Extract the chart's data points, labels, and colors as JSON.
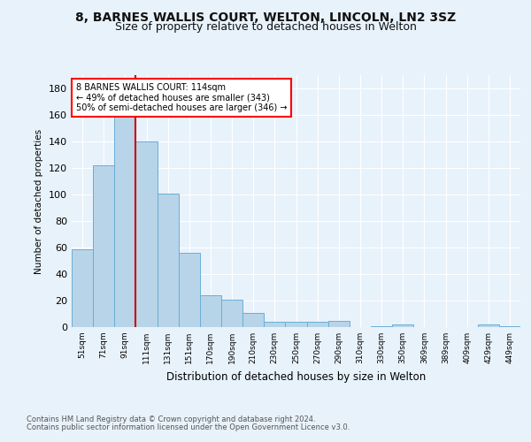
{
  "title1": "8, BARNES WALLIS COURT, WELTON, LINCOLN, LN2 3SZ",
  "title2": "Size of property relative to detached houses in Welton",
  "xlabel": "Distribution of detached houses by size in Welton",
  "ylabel": "Number of detached properties",
  "bar_labels": [
    "51sqm",
    "71sqm",
    "91sqm",
    "111sqm",
    "131sqm",
    "151sqm",
    "170sqm",
    "190sqm",
    "210sqm",
    "230sqm",
    "250sqm",
    "270sqm",
    "290sqm",
    "310sqm",
    "330sqm",
    "350sqm",
    "369sqm",
    "389sqm",
    "409sqm",
    "429sqm",
    "449sqm"
  ],
  "bar_values": [
    59,
    122,
    160,
    140,
    101,
    56,
    24,
    21,
    11,
    4,
    4,
    4,
    5,
    0,
    1,
    2,
    0,
    0,
    0,
    2,
    1
  ],
  "bar_color": "#b8d4e8",
  "bar_edgecolor": "#6aaed6",
  "annotation_text_line1": "8 BARNES WALLIS COURT: 114sqm",
  "annotation_text_line2": "← 49% of detached houses are smaller (343)",
  "annotation_text_line3": "50% of semi-detached houses are larger (346) →",
  "ylim": [
    0,
    190
  ],
  "yticks": [
    0,
    20,
    40,
    60,
    80,
    100,
    120,
    140,
    160,
    180
  ],
  "footer1": "Contains HM Land Registry data © Crown copyright and database right 2024.",
  "footer2": "Contains public sector information licensed under the Open Government Licence v3.0.",
  "bg_color": "#e8f2fb",
  "plot_bg_color": "#e8f2fb",
  "grid_color": "#ffffff",
  "title1_fontsize": 10,
  "title2_fontsize": 9,
  "red_line_color": "#cc0000",
  "red_line_x": 2.5
}
